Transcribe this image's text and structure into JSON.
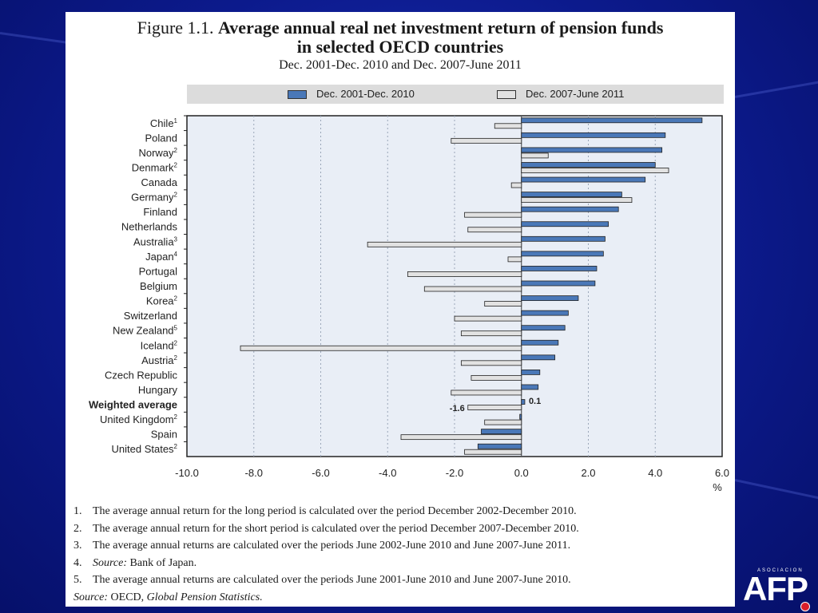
{
  "figure": {
    "label": "Figure 1.1.",
    "title_line1": "Average annual real net investment return of pension funds",
    "title_line2": "in selected OECD countries",
    "subtitle": "Dec. 2001-Dec. 2010 and Dec. 2007-June 2011"
  },
  "legend": [
    {
      "name": "Dec. 2001-Dec. 2010",
      "color": "#4a78b8"
    },
    {
      "name": "Dec. 2007-June 2011",
      "color": "#e2e2e2"
    }
  ],
  "chart_data": {
    "type": "bar",
    "orientation": "horizontal",
    "categories": [
      {
        "label": "Chile",
        "sup": "1"
      },
      {
        "label": "Poland",
        "sup": ""
      },
      {
        "label": "Norway",
        "sup": "2"
      },
      {
        "label": "Denmark",
        "sup": "2"
      },
      {
        "label": "Canada",
        "sup": ""
      },
      {
        "label": "Germany",
        "sup": "2"
      },
      {
        "label": "Finland",
        "sup": ""
      },
      {
        "label": "Netherlands",
        "sup": ""
      },
      {
        "label": "Australia",
        "sup": "3"
      },
      {
        "label": "Japan",
        "sup": "4"
      },
      {
        "label": "Portugal",
        "sup": ""
      },
      {
        "label": "Belgium",
        "sup": ""
      },
      {
        "label": "Korea",
        "sup": "2"
      },
      {
        "label": "Switzerland",
        "sup": ""
      },
      {
        "label": "New Zealand",
        "sup": "5"
      },
      {
        "label": "Iceland",
        "sup": "2"
      },
      {
        "label": "Austria",
        "sup": "2"
      },
      {
        "label": "Czech Republic",
        "sup": ""
      },
      {
        "label": "Hungary",
        "sup": ""
      },
      {
        "label": "Weighted average",
        "sup": "",
        "bold": true
      },
      {
        "label": "United Kingdom",
        "sup": "2"
      },
      {
        "label": "Spain",
        "sup": ""
      },
      {
        "label": "United States",
        "sup": "2"
      }
    ],
    "series": [
      {
        "name": "Dec. 2001-Dec. 2010",
        "values": [
          5.4,
          4.3,
          4.2,
          4.0,
          3.7,
          3.0,
          2.9,
          2.6,
          2.5,
          2.45,
          2.25,
          2.2,
          1.7,
          1.4,
          1.3,
          1.1,
          1.0,
          0.55,
          0.5,
          0.1,
          -0.05,
          -1.2,
          -1.3
        ]
      },
      {
        "name": "Dec. 2007-June 2011",
        "values": [
          -0.8,
          -2.1,
          0.8,
          4.4,
          -0.3,
          3.3,
          -1.7,
          -1.6,
          -4.6,
          -0.4,
          -3.4,
          -2.9,
          -1.1,
          -2.0,
          -1.8,
          -8.4,
          -1.8,
          -1.5,
          -2.1,
          -1.6,
          -1.1,
          -3.6,
          -1.7
        ]
      }
    ],
    "data_labels": [
      {
        "category": "Weighted average",
        "series": "Dec. 2001-Dec. 2010",
        "text": "0.1"
      },
      {
        "category": "Weighted average",
        "series": "Dec. 2007-June 2011",
        "text": "-1.6"
      }
    ],
    "xlim": [
      -10,
      6
    ],
    "xticks": [
      "-10.0",
      "-8.0",
      "-6.0",
      "-4.0",
      "-2.0",
      "0.0",
      "2.0",
      "4.0",
      "6.0"
    ],
    "xunit": "%",
    "grid": "vertical dotted"
  },
  "footnotes": [
    {
      "num": "1.",
      "italic": "",
      "text": "The average annual return for the long period is calculated over the period December 2002-December 2010."
    },
    {
      "num": "2.",
      "italic": "",
      "text": "The average annual return for the short period is calculated over the period December 2007-December 2010."
    },
    {
      "num": "3.",
      "italic": "",
      "text": "The average annual returns are calculated over the periods June 2002-June 2010 and June 2007-June 2011."
    },
    {
      "num": "4.",
      "italic": "Source:",
      "text": "Bank of Japan."
    },
    {
      "num": "5.",
      "italic": "",
      "text": "The average annual returns are calculated over the periods June 2001-June 2010 and June 2007-June 2010."
    }
  ],
  "source": {
    "label": "Source:",
    "text_plain": "OECD,",
    "text_italic": "Global Pension Statistics."
  },
  "logo": {
    "small": "ASOCIACION",
    "main": "AFP"
  }
}
